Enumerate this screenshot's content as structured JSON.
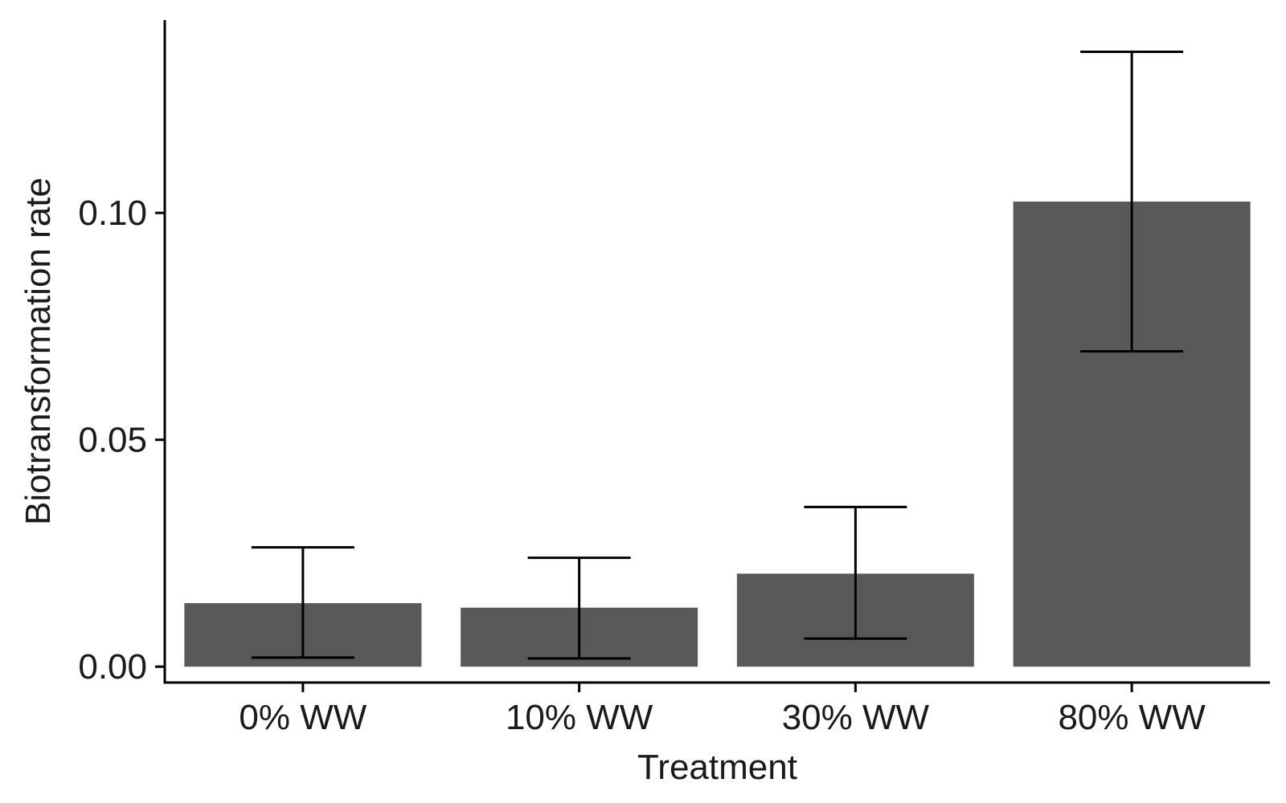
{
  "chart_data": {
    "type": "bar",
    "title": "",
    "xlabel": "Treatment",
    "ylabel": "Biotransformation rate",
    "categories": [
      "0% WW",
      "10% WW",
      "30% WW",
      "80% WW"
    ],
    "values": [
      0.014,
      0.013,
      0.0205,
      0.1025
    ],
    "error_bars": {
      "lower": [
        0.002,
        0.0018,
        0.0062,
        0.0695
      ],
      "upper": [
        0.0263,
        0.024,
        0.0352,
        0.1355
      ]
    },
    "yticks": [
      0.0,
      0.05,
      0.1
    ],
    "ytick_labels": [
      "0.00",
      "0.05",
      "0.10"
    ],
    "ylim": [
      -0.0035,
      0.1425
    ],
    "grid": false,
    "legend": "none",
    "colors": {
      "bar": "#595959",
      "axis": "#000000",
      "error_bar": "#000000"
    }
  }
}
